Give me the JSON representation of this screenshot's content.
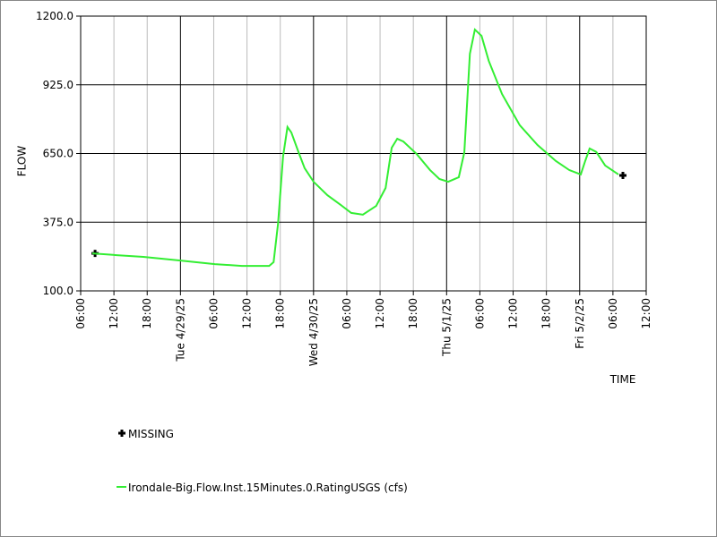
{
  "chart_data": {
    "type": "line",
    "xlabel": "TIME",
    "ylabel": "FLOW",
    "xlim": [
      6,
      108
    ],
    "ylim": [
      100,
      1200
    ],
    "xticks": [
      {
        "value": 6,
        "label": "06:00"
      },
      {
        "value": 12,
        "label": "12:00"
      },
      {
        "value": 18,
        "label": "18:00"
      },
      {
        "value": 24,
        "label": "Tue 4/29/25"
      },
      {
        "value": 30,
        "label": "06:00"
      },
      {
        "value": 36,
        "label": "12:00"
      },
      {
        "value": 42,
        "label": "18:00"
      },
      {
        "value": 48,
        "label": "Wed 4/30/25"
      },
      {
        "value": 54,
        "label": "06:00"
      },
      {
        "value": 60,
        "label": "12:00"
      },
      {
        "value": 66,
        "label": "18:00"
      },
      {
        "value": 72,
        "label": "Thu 5/1/25"
      },
      {
        "value": 78,
        "label": "06:00"
      },
      {
        "value": 84,
        "label": "12:00"
      },
      {
        "value": 90,
        "label": "18:00"
      },
      {
        "value": 96,
        "label": "Fri 5/2/25"
      },
      {
        "value": 102,
        "label": "06:00"
      },
      {
        "value": 108,
        "label": "12:00"
      }
    ],
    "yticks": [
      {
        "value": 100,
        "label": "100.0"
      },
      {
        "value": 375,
        "label": "375.0"
      },
      {
        "value": 650,
        "label": "650.0"
      },
      {
        "value": 925,
        "label": "925.0"
      },
      {
        "value": 1200,
        "label": "1200.0"
      }
    ],
    "grid": true,
    "series": [
      {
        "name": "MISSING",
        "color": "#000000",
        "marker": "plus",
        "x": [
          8.6,
          103.8
        ],
        "values": [
          250,
          562
        ]
      },
      {
        "name": "Irondale-Big.Flow.Inst.15Minutes.0.RatingUSGS (cfs)",
        "color": "#33ee33",
        "marker": "line",
        "x": [
          8.1,
          12.5,
          17.3,
          23.8,
          30.2,
          35.1,
          40,
          40.8,
          41.6,
          42.5,
          43.3,
          44,
          45.3,
          46.4,
          48,
          50.5,
          52.9,
          54.8,
          56.9,
          59.3,
          61,
          62.1,
          63.1,
          64.2,
          66.6,
          69,
          70.7,
          72.3,
          74.2,
          75.2,
          76.2,
          77.1,
          78.3,
          79.6,
          82,
          85.2,
          88.4,
          91.7,
          94.1,
          96.2,
          97,
          97.8,
          99,
          100.6,
          103
        ],
        "values": [
          250,
          243,
          236,
          222,
          207,
          200,
          200,
          215,
          369,
          637,
          756,
          734,
          655,
          591,
          537,
          483,
          444,
          412,
          405,
          440,
          512,
          673,
          709,
          698,
          648,
          584,
          548,
          537,
          555,
          655,
          1049,
          1146,
          1121,
          1021,
          888,
          763,
          684,
          620,
          584,
          566,
          620,
          670,
          656,
          602,
          566
        ]
      }
    ]
  }
}
